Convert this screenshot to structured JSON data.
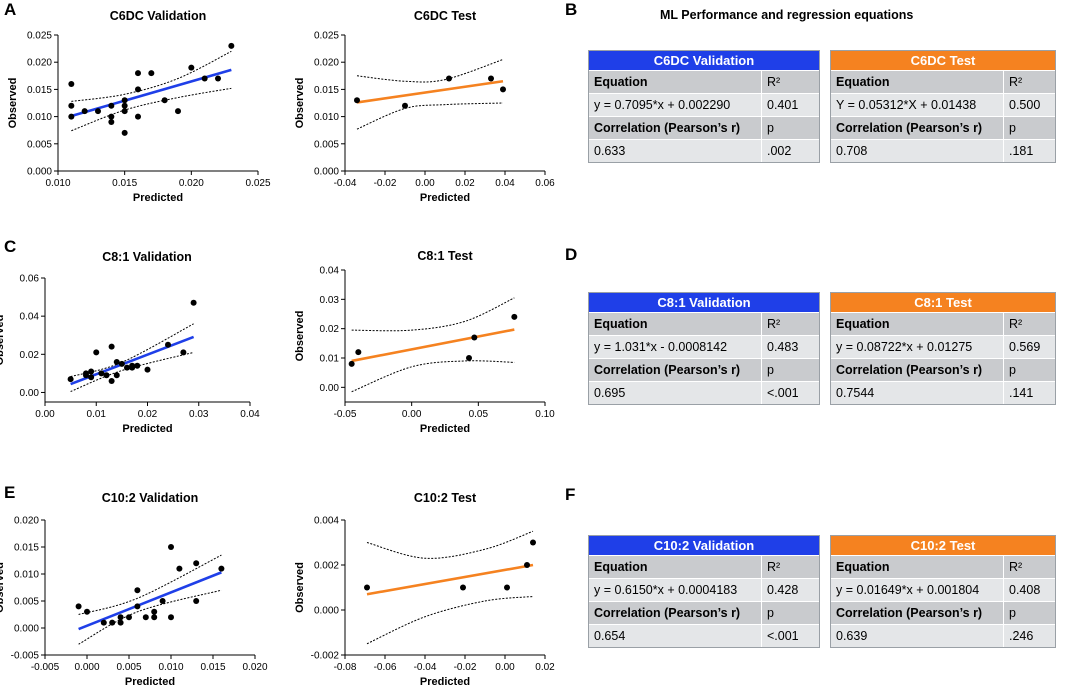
{
  "panel_letters": {
    "a": "A",
    "b": "B",
    "c": "C",
    "d": "D",
    "e": "E",
    "f": "F"
  },
  "tables_heading": "ML Performance and regression equations",
  "chart_data": [
    {
      "id": "c6dc-val",
      "type": "scatter",
      "title": "C6DC Validation",
      "xlabel": "Predicted",
      "ylabel": "Observed",
      "xlim": [
        0.01,
        0.025
      ],
      "ylim": [
        0,
        0.025
      ],
      "xticks": [
        "0.010",
        "0.015",
        "0.020",
        "0.025"
      ],
      "yticks": [
        "0.000",
        "0.005",
        "0.010",
        "0.015",
        "0.020",
        "0.025"
      ],
      "line_color": "#1f3fe8",
      "x": [
        0.011,
        0.011,
        0.011,
        0.012,
        0.013,
        0.014,
        0.014,
        0.014,
        0.015,
        0.015,
        0.015,
        0.015,
        0.016,
        0.016,
        0.016,
        0.017,
        0.018,
        0.019,
        0.02,
        0.021,
        0.022,
        0.023
      ],
      "y": [
        0.016,
        0.012,
        0.01,
        0.011,
        0.011,
        0.012,
        0.01,
        0.009,
        0.013,
        0.012,
        0.007,
        0.011,
        0.018,
        0.015,
        0.01,
        0.018,
        0.013,
        0.011,
        0.019,
        0.017,
        0.017,
        0.023
      ],
      "fit": [
        [
          0.011,
          0.0101
        ],
        [
          0.023,
          0.0186
        ]
      ],
      "ci_upper": [
        [
          0.011,
          0.0128
        ],
        [
          0.015,
          0.0141
        ],
        [
          0.019,
          0.017
        ],
        [
          0.023,
          0.022
        ]
      ],
      "ci_lower": [
        [
          0.011,
          0.0074
        ],
        [
          0.015,
          0.0112
        ],
        [
          0.019,
          0.0135
        ],
        [
          0.023,
          0.0152
        ]
      ]
    },
    {
      "id": "c6dc-test",
      "type": "scatter",
      "title": "C6DC Test",
      "xlabel": "Predicted",
      "ylabel": "Observed",
      "xlim": [
        -0.04,
        0.06
      ],
      "ylim": [
        0,
        0.025
      ],
      "xticks": [
        "-0.04",
        "-0.02",
        "0.00",
        "0.02",
        "0.04",
        "0.06"
      ],
      "yticks": [
        "0.000",
        "0.005",
        "0.010",
        "0.015",
        "0.020",
        "0.025"
      ],
      "line_color": "#f58220",
      "x": [
        -0.034,
        -0.01,
        0.012,
        0.033,
        0.039
      ],
      "y": [
        0.013,
        0.012,
        0.017,
        0.017,
        0.015
      ],
      "fit": [
        [
          -0.034,
          0.0126
        ],
        [
          0.039,
          0.0165
        ]
      ],
      "ci_upper": [
        [
          -0.034,
          0.0175
        ],
        [
          -0.01,
          0.0165
        ],
        [
          0.01,
          0.0168
        ],
        [
          0.039,
          0.0205
        ]
      ],
      "ci_lower": [
        [
          -0.034,
          0.0077
        ],
        [
          -0.01,
          0.0115
        ],
        [
          0.01,
          0.0122
        ],
        [
          0.039,
          0.0125
        ]
      ]
    },
    {
      "id": "c81-val",
      "type": "scatter",
      "title": "C8:1 Validation",
      "xlabel": "Predicted",
      "ylabel": "Observed",
      "xlim": [
        0,
        0.04
      ],
      "ylim": [
        -0.005,
        0.06
      ],
      "xticks": [
        "0.00",
        "0.01",
        "0.02",
        "0.03",
        "0.04"
      ],
      "yticks": [
        "0.00",
        "0.02",
        "0.04",
        "0.06"
      ],
      "ytick_vals": [
        0,
        0.02,
        0.04,
        0.06
      ],
      "line_color": "#1f3fe8",
      "x": [
        0.005,
        0.008,
        0.008,
        0.009,
        0.009,
        0.01,
        0.011,
        0.012,
        0.013,
        0.013,
        0.014,
        0.014,
        0.015,
        0.016,
        0.017,
        0.017,
        0.018,
        0.02,
        0.024,
        0.027,
        0.029
      ],
      "y": [
        0.007,
        0.009,
        0.01,
        0.008,
        0.011,
        0.021,
        0.01,
        0.009,
        0.024,
        0.006,
        0.016,
        0.009,
        0.015,
        0.013,
        0.013,
        0.014,
        0.014,
        0.012,
        0.025,
        0.021,
        0.047
      ],
      "fit": [
        [
          0.005,
          0.0044
        ],
        [
          0.029,
          0.0291
        ]
      ],
      "ci_upper": [
        [
          0.005,
          0.0083
        ],
        [
          0.015,
          0.0158
        ],
        [
          0.029,
          0.036
        ]
      ],
      "ci_lower": [
        [
          0.005,
          0.0005
        ],
        [
          0.015,
          0.0115
        ],
        [
          0.029,
          0.021
        ]
      ]
    },
    {
      "id": "c81-test",
      "type": "scatter",
      "title": "C8:1 Test",
      "xlabel": "Predicted",
      "ylabel": "Observed",
      "xlim": [
        -0.05,
        0.1
      ],
      "ylim": [
        -0.005,
        0.04
      ],
      "xticks": [
        "-0.05",
        "0.00",
        "0.05",
        "0.10"
      ],
      "yticks": [
        "0.00",
        "0.01",
        "0.02",
        "0.03",
        "0.04"
      ],
      "ytick_vals": [
        0,
        0.01,
        0.02,
        0.03,
        0.04
      ],
      "line_color": "#f58220",
      "x": [
        -0.045,
        -0.04,
        0.043,
        0.047,
        0.077
      ],
      "y": [
        0.008,
        0.012,
        0.01,
        0.017,
        0.024
      ],
      "fit": [
        [
          -0.045,
          0.009
        ],
        [
          0.077,
          0.0197
        ]
      ],
      "ci_upper": [
        [
          -0.045,
          0.0195
        ],
        [
          0.0,
          0.0195
        ],
        [
          0.04,
          0.0225
        ],
        [
          0.077,
          0.0305
        ]
      ],
      "ci_lower": [
        [
          -0.045,
          -0.0015
        ],
        [
          0.0,
          0.007
        ],
        [
          0.04,
          0.009
        ],
        [
          0.077,
          0.0085
        ]
      ]
    },
    {
      "id": "c102-val",
      "type": "scatter",
      "title": "C10:2 Validation",
      "xlabel": "Predicted",
      "ylabel": "Observed",
      "xlim": [
        -0.005,
        0.02
      ],
      "ylim": [
        -0.005,
        0.02
      ],
      "xticks": [
        "-0.005",
        "0.000",
        "0.005",
        "0.010",
        "0.015",
        "0.020"
      ],
      "yticks": [
        "-0.005",
        "0.000",
        "0.005",
        "0.010",
        "0.015",
        "0.020"
      ],
      "line_color": "#1f3fe8",
      "x": [
        -0.001,
        0.0,
        0.002,
        0.003,
        0.004,
        0.004,
        0.005,
        0.006,
        0.006,
        0.007,
        0.008,
        0.008,
        0.009,
        0.01,
        0.01,
        0.011,
        0.013,
        0.013,
        0.016
      ],
      "y": [
        0.004,
        0.003,
        0.001,
        0.001,
        0.001,
        0.002,
        0.002,
        0.004,
        0.007,
        0.002,
        0.002,
        0.003,
        0.005,
        0.015,
        0.002,
        0.011,
        0.012,
        0.005,
        0.011
      ],
      "fit": [
        [
          -0.001,
          -0.0002
        ],
        [
          0.016,
          0.0103
        ]
      ],
      "ci_upper": [
        [
          -0.001,
          0.0025
        ],
        [
          0.006,
          0.0055
        ],
        [
          0.016,
          0.0135
        ]
      ],
      "ci_lower": [
        [
          -0.001,
          -0.003
        ],
        [
          0.006,
          0.003
        ],
        [
          0.016,
          0.007
        ]
      ]
    },
    {
      "id": "c102-test",
      "type": "scatter",
      "title": "C10:2 Test",
      "xlabel": "Predicted",
      "ylabel": "Observed",
      "xlim": [
        -0.08,
        0.02
      ],
      "ylim": [
        -0.002,
        0.004
      ],
      "xticks": [
        "-0.08",
        "-0.06",
        "-0.04",
        "-0.02",
        "0.00",
        "0.02"
      ],
      "yticks": [
        "-0.002",
        "0.000",
        "0.002",
        "0.004"
      ],
      "ytick_vals": [
        -0.002,
        0,
        0.002,
        0.004
      ],
      "line_color": "#f58220",
      "x": [
        -0.069,
        -0.021,
        0.001,
        0.011,
        0.014
      ],
      "y": [
        0.001,
        0.001,
        0.001,
        0.002,
        0.003
      ],
      "fit": [
        [
          -0.069,
          0.0007
        ],
        [
          0.014,
          0.002
        ]
      ],
      "ci_upper": [
        [
          -0.069,
          0.003
        ],
        [
          -0.04,
          0.0023
        ],
        [
          -0.01,
          0.0027
        ],
        [
          0.014,
          0.0035
        ]
      ],
      "ci_lower": [
        [
          -0.069,
          -0.0015
        ],
        [
          -0.04,
          -0.0003
        ],
        [
          -0.01,
          0.0004
        ],
        [
          0.014,
          0.0006
        ]
      ]
    }
  ],
  "tables": [
    {
      "id": "b-left",
      "header": "C6DC Validation",
      "color": "blue",
      "eq_label": "Equation",
      "r2_label": "R²",
      "eq": "y = 0.7095*x + 0.002290",
      "r2": "0.401",
      "corr_label": "Correlation (Pearson’s r)",
      "p_label": "p",
      "r": "0.633",
      "p": ".002"
    },
    {
      "id": "b-right",
      "header": "C6DC Test",
      "color": "orange",
      "eq_label": "Equation",
      "r2_label": "R²",
      "eq": "Y = 0.05312*X + 0.01438",
      "r2": "0.500",
      "corr_label": "Correlation (Pearson’s r)",
      "p_label": "p",
      "r": "0.708",
      "p": ".181"
    },
    {
      "id": "d-left",
      "header": "C8:1 Validation",
      "color": "blue",
      "eq_label": "Equation",
      "r2_label": "R²",
      "eq": "y = 1.031*x - 0.0008142",
      "r2": "0.483",
      "corr_label": "Correlation (Pearson’s r)",
      "p_label": "p",
      "r": "0.695",
      "p": "<.001"
    },
    {
      "id": "d-right",
      "header": "C8:1 Test",
      "color": "orange",
      "eq_label": "Equation",
      "r2_label": "R²",
      "eq": "y = 0.08722*x + 0.01275",
      "r2": "0.569",
      "corr_label": "Correlation (Pearson’s r)",
      "p_label": "p",
      "r": "0.7544",
      "p": ".141"
    },
    {
      "id": "f-left",
      "header": "C10:2 Validation",
      "color": "blue",
      "eq_label": "Equation",
      "r2_label": "R²",
      "eq": "y = 0.6150*x + 0.0004183",
      "r2": "0.428",
      "corr_label": "Correlation (Pearson’s r)",
      "p_label": "p",
      "r": "0.654",
      "p": "<.001"
    },
    {
      "id": "f-right",
      "header": "C10:2 Test",
      "color": "orange",
      "eq_label": "Equation",
      "r2_label": "R²",
      "eq": "y = 0.01649*x + 0.001804",
      "r2": "0.408",
      "corr_label": "Correlation (Pearson’s r)",
      "p_label": "p",
      "r": "0.639",
      "p": ".246"
    }
  ]
}
